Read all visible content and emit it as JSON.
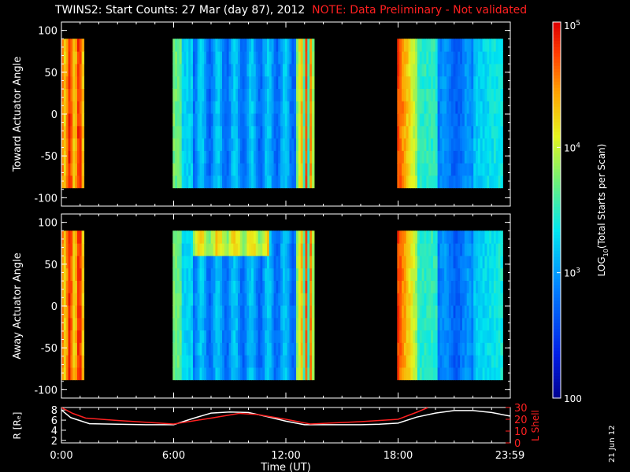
{
  "title": "TWINS2: Start Counts: 27 Mar (day  87), 2012",
  "note": "NOTE: Data Preliminary - Not validated",
  "date_stamp": "21 Jun 12",
  "chart_data": [
    {
      "type": "heatmap",
      "panel": "top",
      "ylabel": "Toward Actuator Angle",
      "ylim": [
        -110,
        110
      ],
      "yticks": [
        100,
        50,
        0,
        -50,
        -100
      ],
      "xlim": [
        0,
        24
      ],
      "coverage_hours": [
        [
          0.0,
          1.15
        ],
        [
          5.95,
          13.45
        ],
        [
          17.95,
          23.55
        ]
      ],
      "angle_range": [
        -88,
        90
      ]
    },
    {
      "type": "heatmap",
      "panel": "middle",
      "ylabel": "Away Actuator Angle",
      "ylim": [
        -110,
        110
      ],
      "yticks": [
        100,
        50,
        0,
        -50,
        -100
      ],
      "xlim": [
        0,
        24
      ],
      "coverage_hours": [
        [
          0.0,
          1.15
        ],
        [
          5.95,
          13.45
        ],
        [
          17.95,
          23.55
        ]
      ],
      "angle_range": [
        -88,
        90
      ]
    },
    {
      "type": "line",
      "panel": "bottom",
      "xlabel": "Time (UT)",
      "ylabel_left": "R [Rₑ]",
      "ylabel_right": "L Shell",
      "xticks": [
        "0:00",
        "6:00",
        "12:00",
        "18:00",
        "23:59"
      ],
      "xtick_hours": [
        0,
        6,
        12,
        18,
        23.98
      ],
      "ylim_left": [
        1.5,
        8.5
      ],
      "yticks_left": [
        "8",
        "6",
        "4",
        "2"
      ],
      "yticks_left_values": [
        8,
        6,
        4,
        2
      ],
      "ylim_right": [
        0,
        30
      ],
      "yticks_right": [
        "30",
        "20",
        "10",
        "0"
      ],
      "yticks_right_values": [
        30,
        20,
        10,
        0
      ],
      "series": [
        {
          "axis": "left",
          "color": "#ffffff",
          "x": [
            0,
            0.5,
            1.5,
            3,
            4.5,
            6,
            7,
            8,
            9,
            10,
            11,
            12,
            13,
            14,
            15,
            16,
            17,
            18,
            19,
            20,
            21,
            22,
            23,
            23.98
          ],
          "y": [
            8.0,
            6.5,
            5.3,
            5.2,
            5.1,
            5.1,
            6.3,
            7.4,
            7.6,
            7.5,
            6.7,
            5.8,
            5.1,
            5.1,
            5.1,
            5.1,
            5.2,
            5.4,
            6.6,
            7.4,
            7.9,
            7.9,
            7.5,
            6.8
          ]
        },
        {
          "axis": "right",
          "color": "#ff2020",
          "x": [
            0,
            0.6,
            1.3,
            3,
            6,
            8,
            9.5,
            10.5,
            12,
            13.3,
            16,
            18,
            19,
            19.6
          ],
          "y": [
            30,
            25,
            21,
            19,
            16,
            21,
            25,
            24,
            20,
            16,
            18,
            20,
            26,
            30
          ]
        }
      ]
    }
  ],
  "colorbar": {
    "label": "LOG10(Total Starts per Scan)",
    "label_base": "LOG",
    "label_sub": "10",
    "label_rest": "(Total Starts per Scan)",
    "ticks": [
      {
        "base": "10",
        "exp": "5",
        "value": 100000
      },
      {
        "base": "10",
        "exp": "4",
        "value": 10000
      },
      {
        "base": "10",
        "exp": "3",
        "value": 1000
      },
      {
        "base": "100",
        "exp": "",
        "value": 100
      }
    ],
    "range": [
      100,
      100000
    ],
    "scale": "log"
  }
}
